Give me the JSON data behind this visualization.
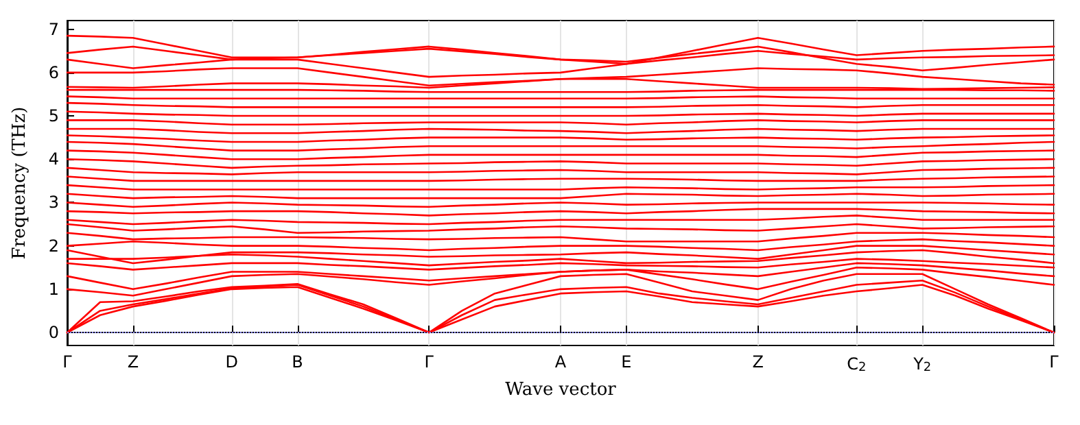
{
  "chart_data": {
    "type": "line",
    "xlabel": "Wave vector",
    "ylabel": "Frequency (THz)",
    "color": "#ff0000",
    "marker": "none",
    "line_style": "solid",
    "grid": "x",
    "ylim": [
      -0.3,
      7.2
    ],
    "yticks": [
      0,
      1,
      2,
      3,
      4,
      5,
      6,
      7
    ],
    "ref_lines": [
      {
        "axis": "y",
        "value": 0,
        "color": "#8888ee",
        "line_style": "dotted"
      }
    ],
    "categories": [
      "Γ",
      null,
      "Z",
      null,
      null,
      "D",
      null,
      "B",
      null,
      null,
      null,
      "Γ",
      null,
      null,
      null,
      "A",
      null,
      "E",
      null,
      null,
      null,
      "Z",
      null,
      null,
      "C$_{2}$",
      null,
      "Y$_{2}$",
      null,
      null,
      null,
      "Γ"
    ],
    "series": [
      {
        "values": [
          0,
          0.4,
          0.6,
          0.73,
          0.87,
          1.0,
          1.03,
          1.05,
          0.8,
          0.55,
          0.28,
          0,
          0.3,
          0.6,
          0.75,
          0.9,
          0.93,
          0.95,
          0.83,
          0.7,
          0.65,
          0.6,
          0.72,
          0.85,
          0.95,
          1.02,
          1.1,
          0.85,
          0.55,
          0.28,
          0
        ]
      },
      {
        "values": [
          0,
          0.5,
          0.65,
          0.77,
          0.9,
          1.02,
          1.06,
          1.1,
          0.85,
          0.6,
          0.3,
          0,
          0.4,
          0.75,
          0.88,
          1.0,
          1.03,
          1.05,
          0.9,
          0.8,
          0.72,
          0.65,
          0.8,
          0.95,
          1.1,
          1.15,
          1.2,
          0.92,
          0.6,
          0.3,
          0
        ]
      },
      {
        "values": [
          0,
          0.7,
          0.72,
          0.83,
          0.95,
          1.05,
          1.08,
          1.12,
          0.88,
          0.65,
          0.33,
          0,
          0.5,
          0.9,
          1.1,
          1.3,
          1.33,
          1.35,
          1.15,
          0.95,
          0.85,
          0.75,
          1.0,
          1.2,
          1.35,
          1.35,
          1.35,
          1.0,
          0.65,
          0.33,
          0
        ]
      },
      {
        "values": [
          1.0,
          0.93,
          0.85,
          1.0,
          1.15,
          1.3,
          1.33,
          1.35,
          1.29,
          1.23,
          1.16,
          1.1,
          1.18,
          1.25,
          1.33,
          1.4,
          1.43,
          1.45,
          1.34,
          1.23,
          1.11,
          1.0,
          1.17,
          1.33,
          1.5,
          1.48,
          1.45,
          1.36,
          1.28,
          1.19,
          1.1
        ]
      },
      {
        "values": [
          1.3,
          1.15,
          1.0,
          1.13,
          1.27,
          1.4,
          1.4,
          1.4,
          1.35,
          1.3,
          1.25,
          1.2,
          1.25,
          1.3,
          1.35,
          1.4,
          1.43,
          1.45,
          1.41,
          1.38,
          1.34,
          1.3,
          1.4,
          1.5,
          1.6,
          1.58,
          1.55,
          1.49,
          1.43,
          1.36,
          1.3
        ]
      },
      {
        "values": [
          1.6,
          1.53,
          1.45,
          1.5,
          1.55,
          1.6,
          1.6,
          1.6,
          1.56,
          1.53,
          1.49,
          1.45,
          1.49,
          1.53,
          1.56,
          1.6,
          1.58,
          1.55,
          1.54,
          1.53,
          1.51,
          1.5,
          1.57,
          1.63,
          1.7,
          1.68,
          1.65,
          1.61,
          1.58,
          1.54,
          1.5
        ]
      },
      {
        "values": [
          1.7,
          1.7,
          1.7,
          1.73,
          1.77,
          1.8,
          1.78,
          1.75,
          1.7,
          1.65,
          1.6,
          1.55,
          1.59,
          1.63,
          1.66,
          1.7,
          1.65,
          1.6,
          1.61,
          1.63,
          1.64,
          1.65,
          1.72,
          1.78,
          1.85,
          1.88,
          1.9,
          1.83,
          1.75,
          1.68,
          1.6
        ]
      },
      {
        "values": [
          1.9,
          1.75,
          1.6,
          1.68,
          1.77,
          1.85,
          1.85,
          1.85,
          1.83,
          1.8,
          1.78,
          1.75,
          1.76,
          1.78,
          1.79,
          1.8,
          1.83,
          1.85,
          1.81,
          1.78,
          1.74,
          1.7,
          1.8,
          1.9,
          2.0,
          2.0,
          2.0,
          1.95,
          1.9,
          1.85,
          1.8
        ]
      },
      {
        "values": [
          2.0,
          2.05,
          2.1,
          2.07,
          2.03,
          2.0,
          2.0,
          2.0,
          1.98,
          1.95,
          1.93,
          1.9,
          1.93,
          1.95,
          1.98,
          2.0,
          2.0,
          2.0,
          1.98,
          1.95,
          1.93,
          1.9,
          1.97,
          2.03,
          2.1,
          2.13,
          2.15,
          2.11,
          2.08,
          2.04,
          2.0
        ]
      },
      {
        "values": [
          2.3,
          2.23,
          2.15,
          2.17,
          2.18,
          2.2,
          2.2,
          2.2,
          2.19,
          2.18,
          2.16,
          2.15,
          2.16,
          2.18,
          2.19,
          2.2,
          2.15,
          2.1,
          2.1,
          2.1,
          2.1,
          2.1,
          2.17,
          2.23,
          2.3,
          2.3,
          2.3,
          2.28,
          2.25,
          2.23,
          2.2
        ]
      },
      {
        "values": [
          2.5,
          2.43,
          2.35,
          2.38,
          2.42,
          2.45,
          2.38,
          2.3,
          2.31,
          2.33,
          2.34,
          2.35,
          2.38,
          2.4,
          2.43,
          2.45,
          2.43,
          2.4,
          2.39,
          2.38,
          2.36,
          2.35,
          2.4,
          2.45,
          2.5,
          2.45,
          2.4,
          2.41,
          2.43,
          2.44,
          2.45
        ]
      },
      {
        "values": [
          2.6,
          2.55,
          2.5,
          2.53,
          2.57,
          2.6,
          2.58,
          2.55,
          2.54,
          2.53,
          2.51,
          2.5,
          2.53,
          2.55,
          2.58,
          2.6,
          2.6,
          2.6,
          2.6,
          2.6,
          2.6,
          2.6,
          2.63,
          2.67,
          2.7,
          2.65,
          2.6,
          2.6,
          2.6,
          2.6,
          2.6
        ]
      },
      {
        "values": [
          2.8,
          2.78,
          2.75,
          2.77,
          2.78,
          2.8,
          2.8,
          2.8,
          2.78,
          2.75,
          2.73,
          2.7,
          2.73,
          2.75,
          2.78,
          2.8,
          2.78,
          2.75,
          2.78,
          2.8,
          2.83,
          2.85,
          2.85,
          2.85,
          2.85,
          2.83,
          2.8,
          2.79,
          2.78,
          2.76,
          2.75
        ]
      },
      {
        "values": [
          3.0,
          2.95,
          2.9,
          2.93,
          2.97,
          3.0,
          2.98,
          2.95,
          2.94,
          2.93,
          2.91,
          2.9,
          2.93,
          2.95,
          2.98,
          3.0,
          2.98,
          2.95,
          2.96,
          2.98,
          2.99,
          3.0,
          3.0,
          3.0,
          3.0,
          3.0,
          3.0,
          2.99,
          2.98,
          2.96,
          2.95
        ]
      },
      {
        "values": [
          3.2,
          3.15,
          3.1,
          3.12,
          3.13,
          3.15,
          3.13,
          3.1,
          3.1,
          3.1,
          3.1,
          3.1,
          3.1,
          3.1,
          3.1,
          3.1,
          3.15,
          3.2,
          3.19,
          3.18,
          3.16,
          3.15,
          3.17,
          3.18,
          3.2,
          3.18,
          3.15,
          3.16,
          3.18,
          3.19,
          3.2
        ]
      },
      {
        "values": [
          3.4,
          3.35,
          3.3,
          3.3,
          3.3,
          3.3,
          3.3,
          3.3,
          3.3,
          3.3,
          3.3,
          3.3,
          3.3,
          3.3,
          3.3,
          3.3,
          3.33,
          3.35,
          3.34,
          3.33,
          3.31,
          3.3,
          3.32,
          3.33,
          3.35,
          3.35,
          3.35,
          3.36,
          3.38,
          3.39,
          3.4
        ]
      },
      {
        "values": [
          3.6,
          3.55,
          3.5,
          3.5,
          3.5,
          3.5,
          3.5,
          3.5,
          3.5,
          3.5,
          3.5,
          3.5,
          3.51,
          3.53,
          3.54,
          3.55,
          3.55,
          3.55,
          3.54,
          3.53,
          3.51,
          3.5,
          3.5,
          3.5,
          3.5,
          3.53,
          3.55,
          3.56,
          3.58,
          3.59,
          3.6
        ]
      },
      {
        "values": [
          3.8,
          3.75,
          3.7,
          3.68,
          3.67,
          3.65,
          3.68,
          3.7,
          3.7,
          3.7,
          3.7,
          3.7,
          3.71,
          3.73,
          3.74,
          3.75,
          3.73,
          3.7,
          3.7,
          3.7,
          3.7,
          3.7,
          3.68,
          3.67,
          3.65,
          3.7,
          3.75,
          3.76,
          3.78,
          3.79,
          3.8
        ]
      },
      {
        "values": [
          4.0,
          3.98,
          3.95,
          3.9,
          3.85,
          3.8,
          3.83,
          3.85,
          3.86,
          3.88,
          3.89,
          3.9,
          3.91,
          3.93,
          3.94,
          3.95,
          3.93,
          3.9,
          3.9,
          3.9,
          3.9,
          3.9,
          3.88,
          3.87,
          3.85,
          3.9,
          3.95,
          3.96,
          3.98,
          3.99,
          4.0
        ]
      },
      {
        "values": [
          4.2,
          4.18,
          4.15,
          4.1,
          4.05,
          4.0,
          4.0,
          4.0,
          4.03,
          4.05,
          4.08,
          4.1,
          4.1,
          4.1,
          4.1,
          4.1,
          4.1,
          4.1,
          4.1,
          4.1,
          4.1,
          4.1,
          4.08,
          4.07,
          4.05,
          4.1,
          4.15,
          4.16,
          4.18,
          4.19,
          4.2
        ]
      },
      {
        "values": [
          4.4,
          4.38,
          4.35,
          4.3,
          4.25,
          4.2,
          4.2,
          4.2,
          4.23,
          4.25,
          4.28,
          4.3,
          4.3,
          4.3,
          4.3,
          4.3,
          4.3,
          4.3,
          4.3,
          4.3,
          4.3,
          4.3,
          4.28,
          4.27,
          4.25,
          4.28,
          4.3,
          4.33,
          4.35,
          4.38,
          4.4
        ]
      },
      {
        "values": [
          4.55,
          4.53,
          4.5,
          4.47,
          4.43,
          4.4,
          4.4,
          4.4,
          4.43,
          4.45,
          4.48,
          4.5,
          4.5,
          4.5,
          4.5,
          4.5,
          4.48,
          4.45,
          4.46,
          4.48,
          4.49,
          4.5,
          4.48,
          4.47,
          4.45,
          4.48,
          4.5,
          4.51,
          4.53,
          4.54,
          4.55
        ]
      },
      {
        "values": [
          4.7,
          4.7,
          4.7,
          4.67,
          4.63,
          4.6,
          4.6,
          4.6,
          4.63,
          4.65,
          4.68,
          4.7,
          4.69,
          4.68,
          4.66,
          4.65,
          4.63,
          4.6,
          4.63,
          4.65,
          4.68,
          4.7,
          4.68,
          4.67,
          4.65,
          4.68,
          4.7,
          4.7,
          4.7,
          4.7,
          4.7
        ]
      },
      {
        "values": [
          4.9,
          4.9,
          4.9,
          4.87,
          4.83,
          4.8,
          4.8,
          4.8,
          4.81,
          4.83,
          4.84,
          4.85,
          4.85,
          4.85,
          4.85,
          4.85,
          4.83,
          4.8,
          4.83,
          4.85,
          4.88,
          4.9,
          4.88,
          4.87,
          4.85,
          4.88,
          4.9,
          4.9,
          4.9,
          4.9,
          4.9
        ]
      },
      {
        "values": [
          5.1,
          5.08,
          5.05,
          5.03,
          5.02,
          5.0,
          5.0,
          5.0,
          5.0,
          5.0,
          5.0,
          5.0,
          5.0,
          5.0,
          5.0,
          5.0,
          5.0,
          5.0,
          5.01,
          5.03,
          5.04,
          5.05,
          5.03,
          5.02,
          5.0,
          5.03,
          5.05,
          5.05,
          5.05,
          5.05,
          5.05
        ]
      },
      {
        "values": [
          5.3,
          5.28,
          5.25,
          5.23,
          5.22,
          5.2,
          5.2,
          5.2,
          5.2,
          5.2,
          5.2,
          5.2,
          5.2,
          5.2,
          5.2,
          5.2,
          5.2,
          5.2,
          5.21,
          5.23,
          5.24,
          5.25,
          5.23,
          5.22,
          5.2,
          5.23,
          5.25,
          5.25,
          5.25,
          5.25,
          5.25
        ]
      },
      {
        "values": [
          5.45,
          5.43,
          5.4,
          5.4,
          5.4,
          5.4,
          5.4,
          5.4,
          5.4,
          5.4,
          5.4,
          5.4,
          5.4,
          5.4,
          5.4,
          5.4,
          5.4,
          5.4,
          5.41,
          5.43,
          5.44,
          5.45,
          5.43,
          5.42,
          5.4,
          5.4,
          5.4,
          5.4,
          5.4,
          5.4,
          5.4
        ]
      },
      {
        "values": [
          5.6,
          5.6,
          5.6,
          5.6,
          5.6,
          5.6,
          5.6,
          5.6,
          5.59,
          5.58,
          5.56,
          5.55,
          5.55,
          5.55,
          5.55,
          5.55,
          5.55,
          5.55,
          5.56,
          5.58,
          5.59,
          5.6,
          5.6,
          5.6,
          5.6,
          5.6,
          5.6,
          5.6,
          5.59,
          5.59,
          5.58
        ]
      },
      {
        "values": [
          5.67,
          5.66,
          5.65,
          5.68,
          5.72,
          5.75,
          5.75,
          5.75,
          5.73,
          5.7,
          5.68,
          5.65,
          5.7,
          5.75,
          5.8,
          5.85,
          5.85,
          5.85,
          5.8,
          5.75,
          5.7,
          5.65,
          5.65,
          5.65,
          5.65,
          5.64,
          5.62,
          5.63,
          5.64,
          5.65,
          5.66
        ]
      },
      {
        "values": [
          6.0,
          6.0,
          6.0,
          6.03,
          6.07,
          6.1,
          6.1,
          6.1,
          6.0,
          5.9,
          5.8,
          5.7,
          5.74,
          5.78,
          5.81,
          5.85,
          5.88,
          5.9,
          5.95,
          6.0,
          6.05,
          6.1,
          6.08,
          6.07,
          6.05,
          5.98,
          5.9,
          5.85,
          5.8,
          5.75,
          5.72
        ]
      },
      {
        "values": [
          6.3,
          6.2,
          6.1,
          6.17,
          6.23,
          6.3,
          6.3,
          6.3,
          6.2,
          6.1,
          6.0,
          5.9,
          5.93,
          5.95,
          5.98,
          6.0,
          6.1,
          6.2,
          6.28,
          6.35,
          6.43,
          6.5,
          6.43,
          6.37,
          6.3,
          6.33,
          6.35,
          6.36,
          6.38,
          6.39,
          6.4
        ]
      },
      {
        "values": [
          6.45,
          6.53,
          6.6,
          6.5,
          6.4,
          6.3,
          6.33,
          6.35,
          6.4,
          6.45,
          6.5,
          6.55,
          6.49,
          6.43,
          6.36,
          6.3,
          6.28,
          6.25,
          6.34,
          6.43,
          6.51,
          6.6,
          6.47,
          6.33,
          6.2,
          6.13,
          6.05,
          6.11,
          6.18,
          6.24,
          6.3
        ]
      },
      {
        "values": [
          6.85,
          6.83,
          6.8,
          6.65,
          6.5,
          6.35,
          6.35,
          6.35,
          6.41,
          6.48,
          6.54,
          6.6,
          6.53,
          6.45,
          6.38,
          6.3,
          6.25,
          6.2,
          6.35,
          6.5,
          6.65,
          6.8,
          6.67,
          6.53,
          6.4,
          6.45,
          6.5,
          6.53,
          6.55,
          6.58,
          6.6
        ]
      }
    ]
  }
}
